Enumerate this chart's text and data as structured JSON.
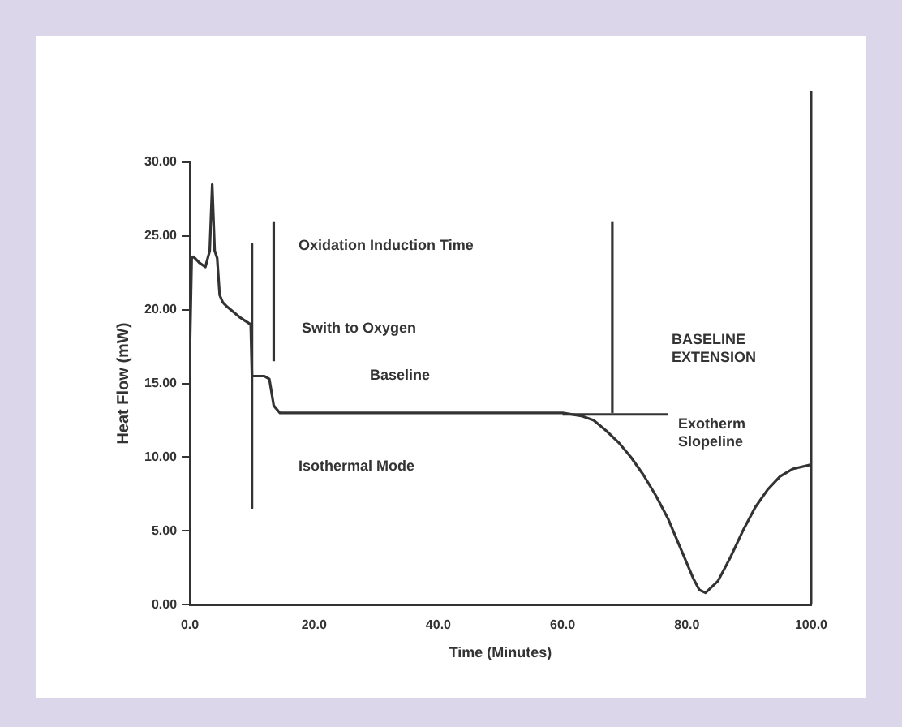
{
  "chart_data": {
    "type": "line",
    "xlabel": "Time (Minutes)",
    "ylabel": "Heat Flow (mW)",
    "xlim": [
      0,
      100
    ],
    "xticks": [
      {
        "value": 0,
        "label": "0.0"
      },
      {
        "value": 20,
        "label": "20.0"
      },
      {
        "value": 40,
        "label": "40.0"
      },
      {
        "value": 60,
        "label": "60.0"
      },
      {
        "value": 80,
        "label": "80.0"
      },
      {
        "value": 100,
        "label": "100.0"
      }
    ],
    "ylim": [
      0,
      30
    ],
    "yticks": [
      {
        "value": 0,
        "label": "0.00"
      },
      {
        "value": 5,
        "label": "5.00"
      },
      {
        "value": 10,
        "label": "10.00"
      },
      {
        "value": 15,
        "label": "15.00"
      },
      {
        "value": 20,
        "label": "20.00"
      },
      {
        "value": 25,
        "label": "25.00"
      },
      {
        "value": 30,
        "label": "30.00"
      }
    ],
    "grid": false,
    "legend": false,
    "marker": "none",
    "line_style": "solid",
    "series": [
      {
        "color": "#333333",
        "x": [
          0,
          0.3,
          0.6,
          1.5,
          2.5,
          3.2,
          3.6,
          4.0,
          4.4,
          4.8,
          5.3,
          6,
          8,
          9.8,
          10,
          12,
          12.8,
          13.5,
          14.5,
          20,
          40,
          60,
          63,
          65,
          67,
          69,
          71,
          73,
          75,
          77,
          79,
          81,
          82,
          83,
          85,
          87,
          89,
          91,
          93,
          95,
          97,
          100
        ],
        "values": [
          17,
          23.5,
          23.6,
          23.2,
          22.9,
          24,
          28.5,
          24,
          23.5,
          21,
          20.5,
          20.2,
          19.5,
          19,
          15.5,
          15.5,
          15.3,
          13.5,
          13,
          13,
          13,
          13,
          12.8,
          12.5,
          11.8,
          11,
          10,
          8.8,
          7.4,
          5.8,
          3.8,
          1.8,
          1,
          0.8,
          1.6,
          3.2,
          5,
          6.6,
          7.8,
          8.7,
          9.2,
          9.5
        ]
      },
      {
        "color": "#333333",
        "x": [
          60,
          77
        ],
        "values": [
          12.9,
          12.9
        ]
      },
      {
        "color": "#333333",
        "x": [
          10,
          10
        ],
        "values": [
          6.5,
          24.5
        ]
      },
      {
        "color": "#333333",
        "x": [
          13.5,
          13.5
        ],
        "values": [
          16.5,
          26
        ]
      },
      {
        "color": "#333333",
        "x": [
          68,
          68
        ],
        "values": [
          13,
          26
        ]
      }
    ],
    "annotations": [
      "Oxidation Induction Time",
      "Swith to Oxygen",
      "Baseline",
      "Isothermal Mode",
      "BASELINE\nEXTENSION",
      "Exotherm\nSlopeline"
    ]
  }
}
